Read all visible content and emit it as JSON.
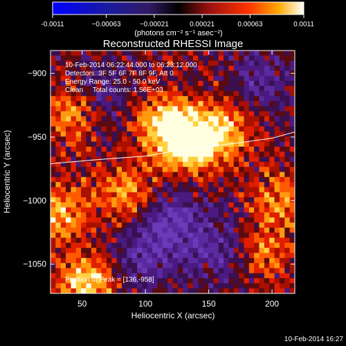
{
  "chart_data": {
    "type": "heatmap",
    "title": "Reconstructed RHESSI Image",
    "xlabel": "Heliocentric X (arcsec)",
    "ylabel": "Heliocentric Y (arcsec)",
    "xlim": [
      25,
      218
    ],
    "ylim": [
      -1073,
      -882
    ],
    "x_ticks": [
      50,
      100,
      150,
      200
    ],
    "y_ticks": [
      -900,
      -950,
      -1000,
      -1050
    ],
    "colorbar": {
      "range": [
        -0.0011,
        0.0011
      ],
      "tick_values": [
        -0.0011,
        -0.00063,
        -0.00021,
        0.00021,
        0.00063,
        0.0011
      ],
      "tick_labels": [
        "-0.0011",
        "−0.00063",
        "−0.00021",
        "0.00021",
        "0.00063",
        "0.0011"
      ],
      "unit_label": "(photons cm⁻² s⁻¹ asec⁻²)"
    },
    "info_lines": [
      "10-Feb-2014 06:22:44.000 to 06:23:12.000",
      "Detectors: 3F 5F 6F 7F 8F 9F, Att 0",
      "Energy Range: 25.0 - 50.0 keV",
      "Clean     Total counts: 1.56E+03"
    ],
    "peak_label": "Position of Peak = [136,-958]",
    "peak_position": [
      136,
      -958
    ],
    "limb_curve": {
      "x": [
        25,
        60,
        100,
        136,
        170,
        200,
        218
      ],
      "y": [
        -971,
        -968,
        -965,
        -959,
        -955,
        -951,
        -946
      ]
    },
    "bright_sources": [
      {
        "x": 135,
        "y": -955,
        "intensity": 1.0
      },
      {
        "x": 115,
        "y": -940,
        "intensity": 0.85
      },
      {
        "x": 160,
        "y": -945,
        "intensity": 0.75
      },
      {
        "x": 45,
        "y": -930,
        "intensity": 0.8
      },
      {
        "x": 30,
        "y": -1010,
        "intensity": 0.7
      },
      {
        "x": 55,
        "y": -1065,
        "intensity": 0.9
      },
      {
        "x": 85,
        "y": -995,
        "intensity": 0.6
      },
      {
        "x": 190,
        "y": -1040,
        "intensity": 0.6
      },
      {
        "x": 205,
        "y": -1000,
        "intensity": 0.5
      }
    ],
    "negative_regions": [
      {
        "x": 60,
        "y": -920,
        "intensity": 0.6
      },
      {
        "x": 120,
        "y": -1020,
        "intensity": 0.8
      },
      {
        "x": 165,
        "y": -1040,
        "intensity": 0.6
      },
      {
        "x": 190,
        "y": -905,
        "intensity": 0.5
      },
      {
        "x": 95,
        "y": -1050,
        "intensity": 0.5
      }
    ]
  },
  "footer": {
    "timestamp": "10-Feb-2014 16:27"
  }
}
